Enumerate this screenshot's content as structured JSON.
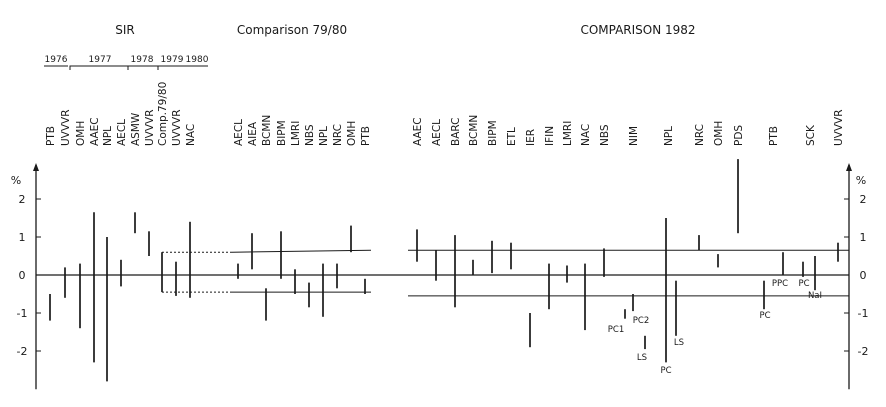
{
  "sections": {
    "sir": "SIR",
    "comp7980": "Comparison  79/80",
    "comp1982": "COMPARISON  1982"
  },
  "years": [
    "1976",
    "1977",
    "1978",
    "1979",
    "1980"
  ],
  "chart_data": {
    "type": "error-bar",
    "ylabel": "%",
    "ylim": [
      -2.9,
      2.9
    ],
    "yticks": [
      -2,
      -1,
      0,
      1,
      2
    ],
    "groups": [
      {
        "name": "SIR",
        "items": [
          {
            "lab": "PTB",
            "low": -1.2,
            "high": -0.5
          },
          {
            "lab": "UVVVR",
            "low": -0.6,
            "high": 0.2
          },
          {
            "lab": "OMH",
            "low": -1.4,
            "high": 0.3
          },
          {
            "lab": "AAEC",
            "low": -2.3,
            "high": 1.65
          },
          {
            "lab": "NPL",
            "low": -2.8,
            "high": 1.0
          },
          {
            "lab": "AECL",
            "low": -0.3,
            "high": 0.4
          },
          {
            "lab": "ASMW",
            "low": 1.1,
            "high": 1.65
          },
          {
            "lab": "UVVVR",
            "low": 0.5,
            "high": 1.15
          },
          {
            "lab": "Comp.79/80",
            "low": -0.45,
            "high": 0.6
          },
          {
            "lab": "UVVVR",
            "low": -0.55,
            "high": 0.35
          },
          {
            "lab": "NAC",
            "low": -0.6,
            "high": 1.4
          }
        ]
      },
      {
        "name": "Comparison 79/80",
        "items": [
          {
            "lab": "AECL",
            "low": -0.1,
            "high": 0.3
          },
          {
            "lab": "AIEA",
            "low": 0.15,
            "high": 1.1
          },
          {
            "lab": "BCMN",
            "low": -1.2,
            "high": -0.35
          },
          {
            "lab": "BIPM",
            "low": -0.1,
            "high": 1.15
          },
          {
            "lab": "LMRI",
            "low": -0.5,
            "high": 0.15
          },
          {
            "lab": "NBS",
            "low": -0.85,
            "high": -0.2
          },
          {
            "lab": "NPL",
            "low": -1.1,
            "high": 0.3
          },
          {
            "lab": "NRC",
            "low": -0.35,
            "high": 0.3
          },
          {
            "lab": "OMH",
            "low": 0.6,
            "high": 1.3
          },
          {
            "lab": "PTB",
            "low": -0.5,
            "high": -0.1
          }
        ]
      },
      {
        "name": "Comparison 1982",
        "items": [
          {
            "lab": "AAEC",
            "low": 0.35,
            "high": 1.2
          },
          {
            "lab": "AECL",
            "low": -0.15,
            "high": 0.65
          },
          {
            "lab": "BARC",
            "low": -0.85,
            "high": 1.05
          },
          {
            "lab": "BCMN",
            "low": 0.0,
            "high": 0.4
          },
          {
            "lab": "BIPM",
            "low": 0.05,
            "high": 0.9
          },
          {
            "lab": "ETL",
            "low": 0.15,
            "high": 0.85
          },
          {
            "lab": "IER",
            "low": -1.9,
            "high": -1.0
          },
          {
            "lab": "IFIN",
            "low": -0.9,
            "high": 0.3
          },
          {
            "lab": "LMRI",
            "low": -0.2,
            "high": 0.25
          },
          {
            "lab": "NAC",
            "low": -1.45,
            "high": 0.3
          },
          {
            "lab": "NBS",
            "low": -0.05,
            "high": 0.7
          },
          {
            "lab": "NIM",
            "values": [
              {
                "tag": "PC1",
                "low": -1.15,
                "high": -0.9
              },
              {
                "tag": "PC2",
                "low": -0.95,
                "high": -0.5
              },
              {
                "tag": "LS",
                "low": -1.95,
                "high": -1.6
              }
            ]
          },
          {
            "lab": "NPL",
            "values": [
              {
                "tag": "PC",
                "low": -2.3,
                "high": 1.5
              },
              {
                "tag": "LS",
                "low": -1.6,
                "high": -0.15
              }
            ]
          },
          {
            "lab": "NRC",
            "low": 0.65,
            "high": 1.05
          },
          {
            "lab": "OMH",
            "low": 0.2,
            "high": 0.55
          },
          {
            "lab": "PDS",
            "low": 1.1,
            "high": 3.05
          },
          {
            "lab": "PTB",
            "values": [
              {
                "tag": "PC",
                "low": -0.9,
                "high": -0.15
              },
              {
                "tag": "PPC",
                "low": 0.0,
                "high": 0.6
              }
            ]
          },
          {
            "lab": "SCK",
            "values": [
              {
                "tag": "PC",
                "low": -0.05,
                "high": 0.35
              },
              {
                "tag": "NaI",
                "low": -0.4,
                "high": 0.5
              }
            ]
          },
          {
            "lab": "UVVVR",
            "low": 0.35,
            "high": 0.85
          }
        ]
      }
    ],
    "reference_lines": [
      {
        "name": "mean",
        "value": 0
      },
      {
        "name": "upper-limit",
        "value": 0.65
      },
      {
        "name": "lower-limit",
        "value": -0.55
      }
    ]
  }
}
